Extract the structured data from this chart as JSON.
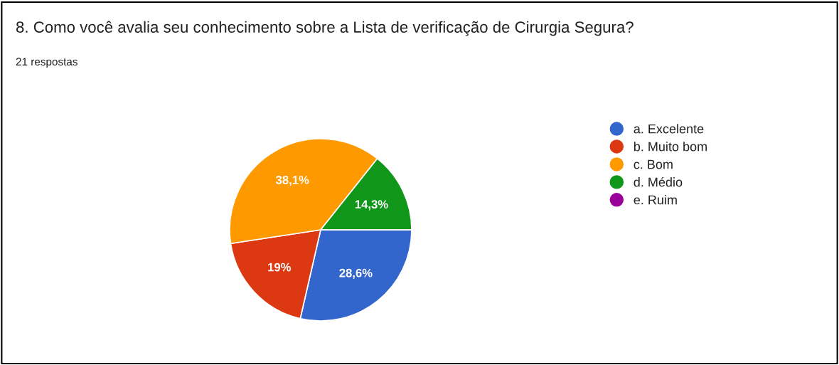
{
  "chart_data": {
    "type": "pie",
    "title": "8. Como você avalia seu conhecimento sobre a Lista de verificação de Cirurgia Segura?",
    "subtitle": "21 respostas",
    "categories": [
      "a. Excelente",
      "b. Muito bom",
      "c. Bom",
      "d. Médio",
      "e. Ruim"
    ],
    "values": [
      28.6,
      19,
      38.1,
      14.3,
      0
    ],
    "colors": [
      "#3366cc",
      "#dc3912",
      "#ff9900",
      "#109618",
      "#990099"
    ],
    "value_labels": [
      "28,6%",
      "19%",
      "38,1%",
      "14,3%",
      null
    ],
    "legend": "right"
  }
}
